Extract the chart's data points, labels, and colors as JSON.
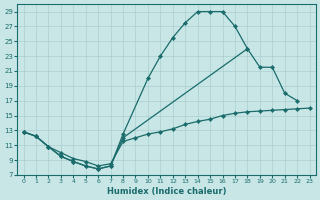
{
  "xlabel": "Humidex (Indice chaleur)",
  "xlim": [
    -0.5,
    23.5
  ],
  "ylim": [
    7,
    30
  ],
  "xticks": [
    0,
    1,
    2,
    3,
    4,
    5,
    6,
    7,
    8,
    9,
    10,
    11,
    12,
    13,
    14,
    15,
    16,
    17,
    18,
    19,
    20,
    21,
    22,
    23
  ],
  "yticks": [
    7,
    9,
    11,
    13,
    15,
    17,
    19,
    21,
    23,
    25,
    27,
    29
  ],
  "bg_color": "#c8e6e6",
  "grid_color": "#aacfcf",
  "line_color": "#1a6b6b",
  "line1_x": [
    0,
    1,
    2,
    3,
    4,
    5,
    6,
    7,
    8,
    10,
    11,
    12,
    13,
    14,
    15,
    16,
    17,
    18
  ],
  "line1_y": [
    12.8,
    12.2,
    10.8,
    9.5,
    8.8,
    8.2,
    7.8,
    8.2,
    12.5,
    20.0,
    23.0,
    25.5,
    27.5,
    29.0,
    29.0,
    29.0,
    27.0,
    24.0
  ],
  "line2_x": [
    0,
    1,
    2,
    3,
    4,
    5,
    6,
    7,
    8,
    18,
    19,
    20,
    21,
    22
  ],
  "line2_y": [
    12.8,
    12.2,
    10.8,
    9.5,
    8.8,
    8.2,
    7.8,
    8.2,
    12.0,
    24.0,
    21.5,
    21.5,
    18.0,
    17.0
  ],
  "line3_x": [
    0,
    1,
    2,
    3,
    4,
    5,
    6,
    7,
    8,
    9,
    10,
    11,
    12,
    13,
    14,
    15,
    16,
    17,
    18,
    19,
    20,
    21,
    22,
    23
  ],
  "line3_y": [
    12.8,
    12.2,
    10.8,
    10.0,
    9.2,
    8.8,
    8.2,
    8.5,
    11.5,
    12.0,
    12.5,
    12.8,
    13.2,
    13.8,
    14.2,
    14.5,
    15.0,
    15.3,
    15.5,
    15.6,
    15.7,
    15.8,
    15.9,
    16.0
  ]
}
